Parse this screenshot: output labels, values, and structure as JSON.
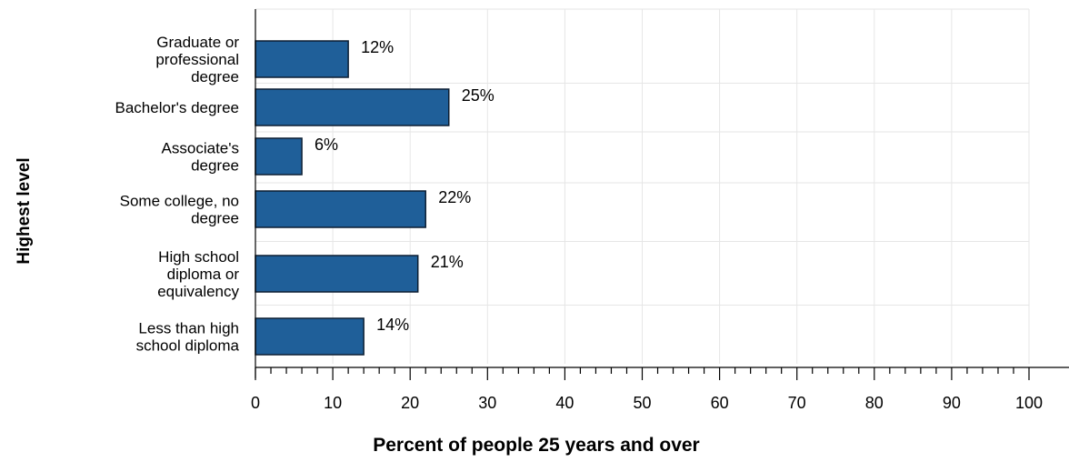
{
  "chart_data": {
    "type": "bar",
    "orientation": "horizontal",
    "categories": [
      [
        "Graduate or",
        "professional",
        "degree"
      ],
      [
        "Bachelor's degree"
      ],
      [
        "Associate's",
        "degree"
      ],
      [
        "Some college, no",
        "degree"
      ],
      [
        "High school",
        "diploma or",
        "equivalency"
      ],
      [
        "Less than high",
        "school diploma"
      ]
    ],
    "values": [
      12,
      25,
      6,
      22,
      21,
      14
    ],
    "value_labels": [
      "12%",
      "25%",
      "6%",
      "22%",
      "21%",
      "14%"
    ],
    "xlabel": "Percent of people 25 years and over",
    "ylabel": "Highest level",
    "xlim": [
      0,
      100
    ],
    "xticks": [
      0,
      10,
      20,
      30,
      40,
      50,
      60,
      70,
      80,
      90,
      100
    ],
    "grid": true,
    "colors": {
      "bar_fill": "#1f5f99",
      "bar_stroke": "#0d1f33",
      "grid": "#e6e6e6",
      "axis": "#000000",
      "text": "#000000"
    }
  }
}
